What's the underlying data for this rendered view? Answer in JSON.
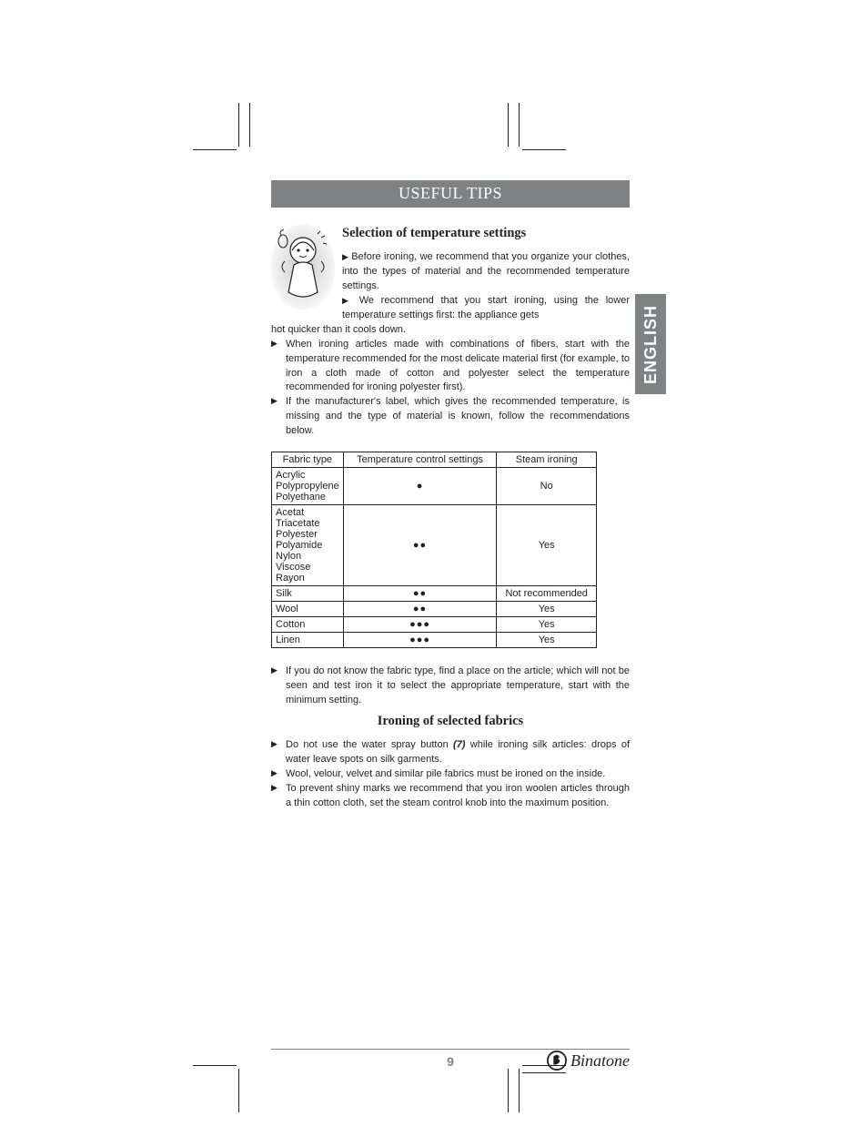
{
  "banner": "USEFUL TIPS",
  "side_tab": "ENGLISH",
  "section1": {
    "heading": "Selection of temperature settings",
    "intro_tips": [
      "Before ironing, we recommend that you organize your clothes, into the types of material and the recommended temperature settings.",
      "We recommend that you start ironing, using the lower temperature settings first: the appliance gets hot quicker than it cools down."
    ],
    "body_tips": [
      "When ironing articles made with combinations of fibers, start with the temperature recommended for the most delicate material first (for example, to iron a cloth made of cotton and polyester select the temperature recommended for ironing polyester first).",
      "If the manufacturer's label, which gives the recommended temperature, is missing and the type of material is known, follow the recommendations below."
    ]
  },
  "table": {
    "columns": [
      "Fabric type",
      "Temperature control settings",
      "Steam ironing"
    ],
    "col_widths": [
      "78px",
      "170px",
      "110px"
    ],
    "rows": [
      {
        "fabrics": [
          "Acrylic",
          "Polypropylene",
          "Polyethane"
        ],
        "dots": 1,
        "steam": "No"
      },
      {
        "fabrics": [
          "Acetat",
          "Triacetate",
          "Polyester",
          "Polyamide",
          "Nylon",
          "Viscose",
          "Rayon"
        ],
        "dots": 2,
        "steam": "Yes"
      },
      {
        "fabrics": [
          "Silk"
        ],
        "dots": 2,
        "steam": "Not recommended"
      },
      {
        "fabrics": [
          "Wool"
        ],
        "dots": 2,
        "steam": "Yes"
      },
      {
        "fabrics": [
          "Cotton"
        ],
        "dots": 3,
        "steam": "Yes"
      },
      {
        "fabrics": [
          "Linen"
        ],
        "dots": 3,
        "steam": "Yes"
      }
    ]
  },
  "after_table_tip": "If you do not know the fabric type, find a place on the article; which will not be seen and test iron it to select the appropriate temperature, start with the minimum setting.",
  "section2": {
    "heading": "Ironing of selected fabrics",
    "tips": [
      {
        "pre": "Do not use the water spray button ",
        "bold": "(7)",
        "post": " while ironing silk articles: drops of water leave spots on silk garments."
      },
      {
        "pre": "Wool, velour, velvet and similar pile fabrics must be ironed on the inside.",
        "bold": "",
        "post": ""
      },
      {
        "pre": "To prevent shiny marks we recommend that you iron woolen articles through a thin cotton cloth, set the steam control knob into the maximum position.",
        "bold": "",
        "post": ""
      }
    ]
  },
  "page_number": "9",
  "brand": "Binatone",
  "colors": {
    "banner_bg": "#808184",
    "text": "#231f20"
  }
}
